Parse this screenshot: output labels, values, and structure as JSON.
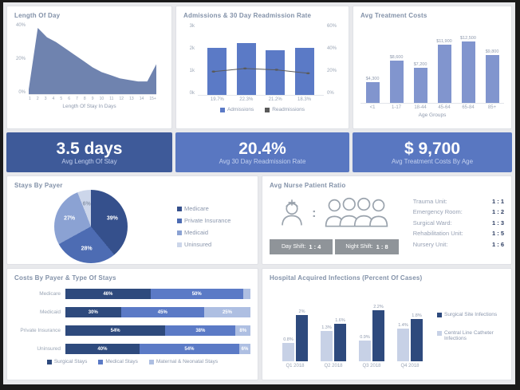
{
  "kpis": [
    {
      "value": "3.5 days",
      "label": "Avg Length Of Stay",
      "bg": "#3e5a99"
    },
    {
      "value": "20.4%",
      "label": "Avg 30 Day Readmission Rate",
      "bg": "#5977c1"
    },
    {
      "value": "$ 9,700",
      "label": "Avg Treatment Costs By Age",
      "bg": "#5977c1"
    }
  ],
  "nurse_panel": {
    "title": "Avg Nurse Patient Ratio",
    "colon": ":",
    "shift_bar": [
      {
        "label": "Day Shift:",
        "value": "1 : 4"
      },
      {
        "label": "Night Shift:",
        "value": "1 : 8"
      }
    ],
    "units": [
      {
        "label": "Trauma Unit:",
        "value": "1 : 1"
      },
      {
        "label": "Emergency Room:",
        "value": "1 : 2"
      },
      {
        "label": "Surgical Ward:",
        "value": "1 : 3"
      },
      {
        "label": "Rehabilitation Unit:",
        "value": "1 : 5"
      },
      {
        "label": "Nursery Unit:",
        "value": "1 : 6"
      }
    ]
  },
  "chart_data": [
    {
      "id": "length_of_stay",
      "type": "area",
      "title": "Length Of Day",
      "xlabel": "Length Of Stay In Days",
      "x": [
        "1",
        "2",
        "3",
        "4",
        "5",
        "6",
        "7",
        "8",
        "9",
        "10",
        "11",
        "12",
        "13",
        "14",
        "15+"
      ],
      "values": [
        3,
        42,
        36,
        33,
        29,
        25,
        21,
        17,
        14,
        12,
        10,
        9,
        8,
        8,
        19
      ],
      "yticks": [
        "40%",
        "20%",
        "0%"
      ],
      "ylim": [
        0,
        45
      ],
      "color": "#5f76a6"
    },
    {
      "id": "admissions_readmissions",
      "type": "bar+line",
      "title": "Admissions & 30 Day Readmission Rate",
      "categories": [
        "19.7%",
        "22.3%",
        "21.2%",
        "18.3%"
      ],
      "series": [
        {
          "name": "Admissions",
          "kind": "bar",
          "values": [
            2.0,
            2.2,
            1.9,
            2.0
          ],
          "color": "#5b7ac6"
        },
        {
          "name": "Readmissions",
          "kind": "line",
          "values": [
            19.7,
            22.3,
            21.2,
            18.3
          ],
          "color": "#5a5a5a"
        }
      ],
      "left_axis": {
        "ticks": [
          "3k",
          "2k",
          "1k",
          "0k"
        ],
        "max": 3
      },
      "right_axis": {
        "ticks": [
          "60%",
          "40%",
          "20%",
          "0%"
        ],
        "max": 60
      },
      "legend": [
        "Admissions",
        "Readmissions"
      ]
    },
    {
      "id": "avg_treatment_costs",
      "type": "bar",
      "title": "Avg Treatment Costs",
      "xlabel": "Age Groups",
      "categories": [
        "<1",
        "1-17",
        "18-44",
        "45-64",
        "65-84",
        "85+"
      ],
      "values": [
        4300,
        8600,
        7200,
        11900,
        12500,
        9800
      ],
      "labels": [
        "$4,300",
        "$8,600",
        "$7,200",
        "$11,900",
        "$12,500",
        "$9,800"
      ],
      "ymax": 15000,
      "color": "#8195ce"
    },
    {
      "id": "stays_by_payer",
      "type": "pie",
      "title": "Stays By Payer",
      "slices": [
        {
          "label": "Medicare",
          "value": 39,
          "pct_label": "39%",
          "color": "#35508c"
        },
        {
          "label": "Private Insurance",
          "value": 28,
          "pct_label": "28%",
          "color": "#4d6cb3"
        },
        {
          "label": "Medicaid",
          "value": 27,
          "pct_label": "27%",
          "color": "#8ba2d3"
        },
        {
          "label": "Uninsured",
          "value": 6,
          "pct_label": "6%",
          "color": "#ccd6ea"
        }
      ]
    },
    {
      "id": "costs_by_payer_type",
      "type": "stacked-bar",
      "title": "Costs By Payer & Type Of Stays",
      "categories": [
        "Medicare",
        "Medicaid",
        "Private Insurance",
        "Uninsured"
      ],
      "series": [
        {
          "name": "Surgical Stays",
          "color": "#2e4a7d",
          "values": [
            46,
            30,
            54,
            40
          ]
        },
        {
          "name": "Medical Stays",
          "color": "#5b7ac6",
          "values": [
            50,
            45,
            38,
            54
          ]
        },
        {
          "name": "Maternal & Neonatal Stays",
          "color": "#aebfe2",
          "values": [
            4,
            25,
            8,
            6
          ]
        }
      ]
    },
    {
      "id": "hospital_acquired_infections",
      "type": "grouped-bar",
      "title": "Hospital Acquired Infections (Percent Of Cases)",
      "categories": [
        "Q1 2018",
        "Q2 2018",
        "Q3 2018",
        "Q4 2018"
      ],
      "series": [
        {
          "name": "Surgical Site Infections",
          "color": "#2e4a7d",
          "values": [
            2.0,
            1.6,
            2.2,
            1.8
          ]
        },
        {
          "name": "Central Line Catheter Infections",
          "color": "#c7d1e6",
          "values": [
            0.8,
            1.3,
            0.9,
            1.4
          ]
        }
      ],
      "ymax": 2.6
    }
  ]
}
